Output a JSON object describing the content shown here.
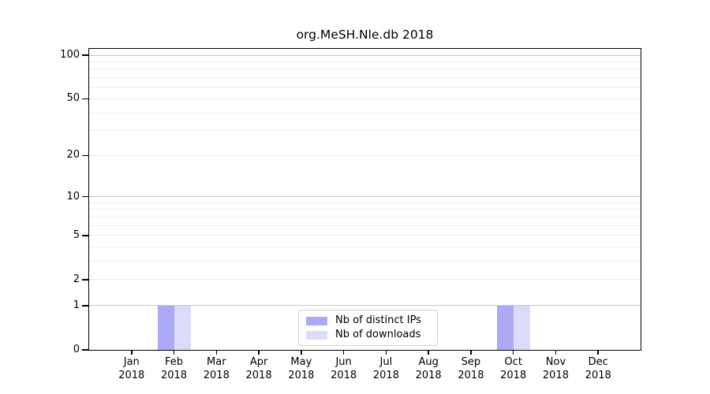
{
  "chart_data": {
    "type": "bar",
    "title": "org.MeSH.Nle.db 2018",
    "yscale": "log1p",
    "ylim": [
      0,
      110
    ],
    "grid": "horizontal",
    "legend_position": "bottom-center-inside",
    "categories": [
      "Jan",
      "Feb",
      "Mar",
      "Apr",
      "May",
      "Jun",
      "Jul",
      "Aug",
      "Sep",
      "Oct",
      "Nov",
      "Dec"
    ],
    "category_year": "2018",
    "yticks": [
      0,
      1,
      2,
      5,
      10,
      20,
      50,
      100
    ],
    "ytick_labels": [
      "0",
      "1",
      "2",
      "5",
      "10",
      "20",
      "50",
      "100"
    ],
    "major_gridlines": [
      1,
      10,
      100
    ],
    "minor_gridlines": [
      2,
      3,
      4,
      5,
      6,
      7,
      8,
      9,
      20,
      30,
      40,
      50,
      60,
      70,
      80,
      90
    ],
    "series": [
      {
        "name": "Nb of distinct IPs",
        "color": "#aaaaf5",
        "values": [
          0,
          1,
          0,
          0,
          0,
          0,
          0,
          0,
          0,
          1,
          0,
          0
        ]
      },
      {
        "name": "Nb of downloads",
        "color": "#dcdcfa",
        "values": [
          0,
          1,
          0,
          0,
          0,
          0,
          0,
          0,
          0,
          1,
          0,
          0
        ]
      }
    ],
    "colors": {
      "major_grid": "#c9c9c9",
      "minor_grid": "#ededed",
      "axis": "#000000",
      "legend_border": "#d2d2d2"
    }
  }
}
